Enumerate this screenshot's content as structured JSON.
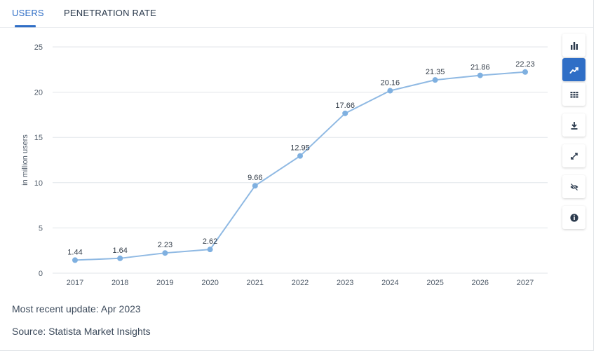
{
  "tabs": [
    {
      "label": "USERS",
      "active": true
    },
    {
      "label": "PENETRATION RATE",
      "active": false
    }
  ],
  "toolbar": [
    {
      "icon": "bar-chart-icon",
      "active": false
    },
    {
      "icon": "line-chart-icon",
      "active": true
    },
    {
      "icon": "table-icon",
      "active": false
    },
    {
      "icon": "download-icon",
      "active": false
    },
    {
      "icon": "fullscreen-icon",
      "active": false
    },
    {
      "icon": "hide-icon",
      "active": false
    },
    {
      "icon": "info-icon",
      "active": false
    }
  ],
  "footer": {
    "update": "Most recent update: Apr 2023",
    "source": "Source: Statista Market Insights"
  },
  "colors": {
    "accent": "#2f6ec6",
    "line": "#8fb9e3",
    "point": "#7fb0e0",
    "grid": "#e1e5ea"
  },
  "chart_data": {
    "type": "line",
    "title": "",
    "xlabel": "",
    "ylabel": "in million users",
    "categories": [
      "2017",
      "2018",
      "2019",
      "2020",
      "2021",
      "2022",
      "2023",
      "2024",
      "2025",
      "2026",
      "2027"
    ],
    "series": [
      {
        "name": "Users",
        "values": [
          1.44,
          1.64,
          2.23,
          2.62,
          9.66,
          12.95,
          17.66,
          20.16,
          21.35,
          21.86,
          22.23
        ]
      }
    ],
    "value_labels": [
      "1.44",
      "1.64",
      "2.23",
      "2.62",
      "9.66",
      "12.95",
      "17.66",
      "20.16",
      "21.35",
      "21.86",
      "22.23"
    ],
    "yticks": [
      0,
      5,
      10,
      15,
      20,
      25
    ],
    "ylim": [
      0,
      25
    ],
    "grid": true
  }
}
